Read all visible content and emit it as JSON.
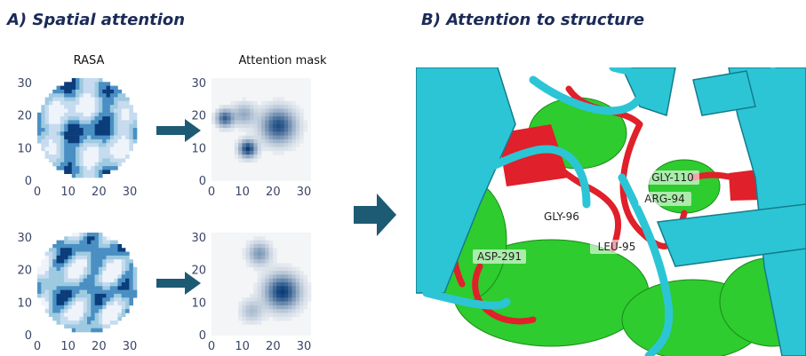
{
  "panel_a": {
    "title": "A) Spatial attention",
    "rasa_label": "RASA",
    "mask_label": "Attention mask",
    "ticks": [
      0,
      10,
      20,
      30
    ]
  },
  "panel_b": {
    "title": "B) Attention to structure",
    "residues": [
      "GLY-110",
      "ARG-94",
      "GLY-96",
      "LEU-95",
      "ASP-291"
    ]
  }
}
